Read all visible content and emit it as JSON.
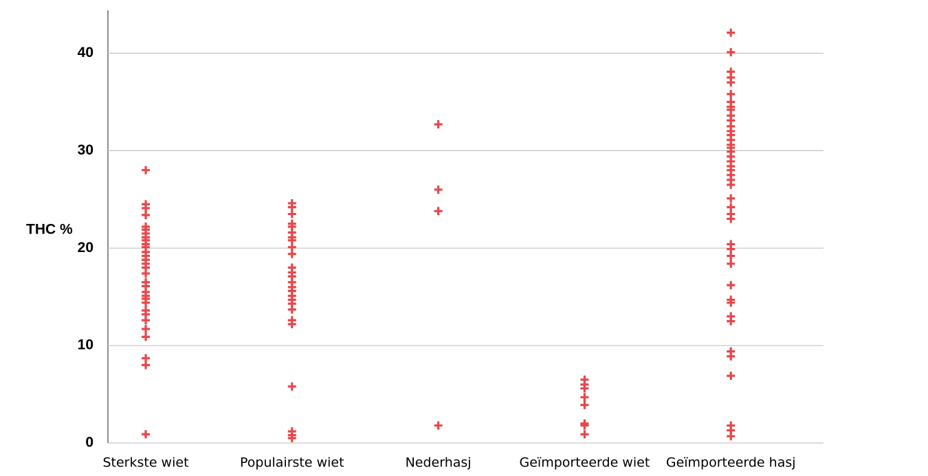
{
  "chart_data": {
    "type": "strip",
    "y_label": "THC %",
    "categories": [
      "Sterkste wiet",
      "Populairste wiet",
      "Nederhasj",
      "Geïmporteerde wiet",
      "Geïmporteerde hasj"
    ],
    "values": [
      [
        28.0,
        24.5,
        24.1,
        23.4,
        22.2,
        21.9,
        21.5,
        21.1,
        20.8,
        20.4,
        20.1,
        19.6,
        19.2,
        18.8,
        18.4,
        18.0,
        17.4,
        16.5,
        16.1,
        15.5,
        15.1,
        14.8,
        14.4,
        13.6,
        13.2,
        12.6,
        11.7,
        10.9,
        8.7,
        8.0,
        0.9
      ],
      [
        24.6,
        24.2,
        23.5,
        22.5,
        22.2,
        21.6,
        21.1,
        20.8,
        20.1,
        19.4,
        18.0,
        17.5,
        17.1,
        16.5,
        16.0,
        15.6,
        15.1,
        14.7,
        14.3,
        13.7,
        12.6,
        12.2,
        5.8,
        1.2,
        0.8,
        0.5
      ],
      [
        32.7,
        26.0,
        23.8,
        1.8
      ],
      [
        6.5,
        6.0,
        5.6,
        4.7,
        3.9,
        2.0,
        1.8,
        0.9
      ],
      [
        42.1,
        40.1,
        38.1,
        37.5,
        37.0,
        35.8,
        35.0,
        34.5,
        34.2,
        33.6,
        33.1,
        32.5,
        32.0,
        31.6,
        31.1,
        30.6,
        30.3,
        29.9,
        29.4,
        28.9,
        28.4,
        28.0,
        27.5,
        27.0,
        26.5,
        25.1,
        24.2,
        23.5,
        23.0,
        20.4,
        19.9,
        19.2,
        18.4,
        16.2,
        14.7,
        14.4,
        13.0,
        12.5,
        9.4,
        8.9,
        6.9,
        1.8,
        1.3,
        0.7
      ]
    ],
    "color": "#e8474a",
    "ylim": [
      0,
      44.4
    ],
    "yticks": [
      0,
      10,
      20,
      30,
      40
    ],
    "grid": true
  }
}
